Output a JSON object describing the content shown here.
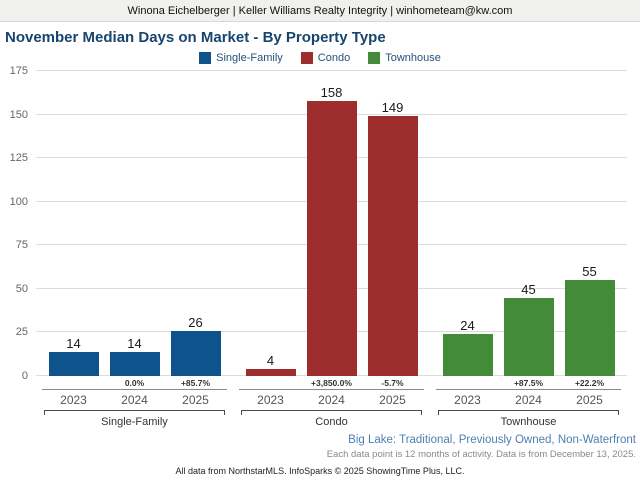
{
  "header": {
    "contact": "Winona Eichelberger | Keller Williams Realty Integrity | winhometeam@kw.com"
  },
  "title": "November Median Days on Market - By Property Type",
  "chart_data": {
    "type": "bar",
    "title": "November Median Days on Market - By Property Type",
    "xlabel": "",
    "ylabel": "Median Days on Market",
    "ylim": [
      0,
      175
    ],
    "yticks": [
      0,
      25,
      50,
      75,
      100,
      125,
      150,
      175
    ],
    "grid": true,
    "legend_position": "top",
    "series": [
      {
        "name": "Single-Family",
        "color": "#0e538c"
      },
      {
        "name": "Condo",
        "color": "#9e2e2e"
      },
      {
        "name": "Townhouse",
        "color": "#438a39"
      }
    ],
    "groups": [
      {
        "name": "Single-Family",
        "color": "#0e538c",
        "years": [
          "2023",
          "2024",
          "2025"
        ],
        "values": [
          14,
          14,
          26
        ],
        "pct_change": [
          "",
          "0.0%",
          "+85.7%"
        ]
      },
      {
        "name": "Condo",
        "color": "#9e2e2e",
        "years": [
          "2023",
          "2024",
          "2025"
        ],
        "values": [
          4,
          158,
          149
        ],
        "pct_change": [
          "",
          "+3,850.0%",
          "-5.7%"
        ]
      },
      {
        "name": "Townhouse",
        "color": "#438a39",
        "years": [
          "2023",
          "2024",
          "2025"
        ],
        "values": [
          24,
          45,
          55
        ],
        "pct_change": [
          "",
          "+87.5%",
          "+22.2%"
        ]
      }
    ]
  },
  "footer": {
    "filter_info": "Big Lake: Traditional, Previously Owned, Non-Waterfront",
    "data_note": "Each data point is 12 months of activity. Data is from December 13, 2025.",
    "attribution": "All data from NorthstarMLS. InfoSparks © 2025 ShowingTime Plus, LLC."
  }
}
